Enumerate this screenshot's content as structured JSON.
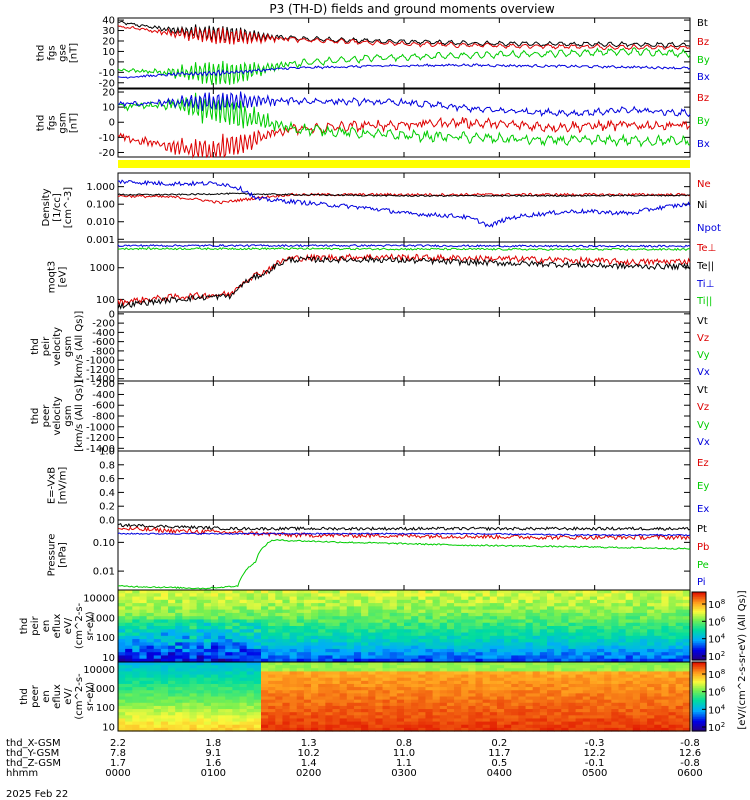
{
  "title": "P3 (TH-D) fields and ground moments overview",
  "date_label": "2025 Feb 22",
  "colors": {
    "black": "#000000",
    "red": "#dd0000",
    "green": "#00cc00",
    "blue": "#0000dd",
    "yellow": "#ffff00"
  },
  "chart_data": [
    {
      "type": "line",
      "id": "fgs_gse",
      "ylabel": [
        "thd",
        "fgs",
        "gse",
        "[nT]"
      ],
      "ylim": [
        -25,
        42
      ],
      "log": false,
      "yticks": [
        40,
        30,
        20,
        10,
        0,
        -10,
        -20
      ],
      "series": [
        {
          "name": "Bt",
          "color": "black",
          "shape": [
            [
              0,
              38
            ],
            [
              0.1,
              30
            ],
            [
              0.2,
              26
            ],
            [
              0.33,
              22
            ],
            [
              0.45,
              20
            ],
            [
              0.6,
              18
            ],
            [
              0.75,
              17
            ],
            [
              0.9,
              17
            ],
            [
              1,
              16
            ]
          ],
          "noise": 2,
          "oscAmp": 8
        },
        {
          "name": "Bz",
          "color": "red",
          "shape": [
            [
              0,
              34
            ],
            [
              0.1,
              27
            ],
            [
              0.2,
              24
            ],
            [
              0.33,
              21
            ],
            [
              0.45,
              18
            ],
            [
              0.6,
              16
            ],
            [
              0.75,
              15
            ],
            [
              0.9,
              14
            ],
            [
              1,
              14
            ]
          ],
          "noise": 2,
          "oscAmp": 8
        },
        {
          "name": "By",
          "color": "green",
          "shape": [
            [
              0,
              -8
            ],
            [
              0.1,
              -10
            ],
            [
              0.2,
              -12
            ],
            [
              0.3,
              -2
            ],
            [
              0.45,
              4
            ],
            [
              0.6,
              6
            ],
            [
              0.75,
              8
            ],
            [
              0.9,
              10
            ],
            [
              1,
              8
            ]
          ],
          "noise": 3,
          "oscAmp": 12
        },
        {
          "name": "Bx",
          "color": "blue",
          "shape": [
            [
              0,
              -15
            ],
            [
              0.1,
              -12
            ],
            [
              0.2,
              -10
            ],
            [
              0.3,
              -6
            ],
            [
              0.45,
              -4
            ],
            [
              0.6,
              -3
            ],
            [
              0.75,
              -4
            ],
            [
              0.9,
              -5
            ],
            [
              1,
              -6
            ]
          ],
          "noise": 2,
          "oscAmp": 2
        }
      ]
    },
    {
      "type": "line",
      "id": "fgs_gsm",
      "ylabel": [
        "thd",
        "fgs",
        "gsm",
        "[nT]"
      ],
      "ylim": [
        -23,
        22
      ],
      "log": false,
      "yticks": [
        20,
        10,
        0,
        -10,
        -20
      ],
      "series": [
        {
          "name": "Bz",
          "color": "red",
          "shape": [
            [
              0,
              -10
            ],
            [
              0.08,
              -15
            ],
            [
              0.16,
              -20
            ],
            [
              0.2,
              -15
            ],
            [
              0.3,
              -5
            ],
            [
              0.45,
              -2
            ],
            [
              0.6,
              0
            ],
            [
              0.75,
              -3
            ],
            [
              0.9,
              -2
            ],
            [
              1,
              -2
            ]
          ],
          "noise": 5,
          "oscAmp": 8
        },
        {
          "name": "By",
          "color": "green",
          "shape": [
            [
              0,
              10
            ],
            [
              0.1,
              12
            ],
            [
              0.18,
              8
            ],
            [
              0.3,
              -4
            ],
            [
              0.45,
              -8
            ],
            [
              0.6,
              -10
            ],
            [
              0.75,
              -12
            ],
            [
              0.9,
              -12
            ],
            [
              1,
              -13
            ]
          ],
          "noise": 4,
          "oscAmp": 10
        },
        {
          "name": "Bx",
          "color": "blue",
          "shape": [
            [
              0,
              12
            ],
            [
              0.1,
              13
            ],
            [
              0.2,
              14
            ],
            [
              0.35,
              14
            ],
            [
              0.5,
              13
            ],
            [
              0.65,
              8
            ],
            [
              0.8,
              6
            ],
            [
              0.9,
              8
            ],
            [
              1,
              6
            ]
          ],
          "noise": 3,
          "oscAmp": 6
        }
      ]
    },
    {
      "type": "line",
      "id": "density",
      "ylabel": [
        "Density",
        "[1/cc]",
        "[cm^-3]"
      ],
      "ylim": [
        0.0007,
        6
      ],
      "log": true,
      "yticks": [
        1.0,
        0.1,
        0.01,
        0.001
      ],
      "ytick_labels": [
        "1.000",
        "0.100",
        "0.010",
        "0.001"
      ],
      "series": [
        {
          "name": "Ne",
          "color": "red",
          "shape": [
            [
              0,
              0.3
            ],
            [
              0.1,
              0.25
            ],
            [
              0.18,
              0.12
            ],
            [
              0.23,
              0.2
            ],
            [
              0.3,
              0.35
            ],
            [
              0.5,
              0.35
            ],
            [
              0.7,
              0.35
            ],
            [
              1,
              0.35
            ]
          ],
          "noise": 0.15,
          "oscAmp": 0
        },
        {
          "name": "Ni",
          "color": "black",
          "shape": [
            [
              0,
              0.35
            ],
            [
              0.1,
              0.35
            ],
            [
              0.2,
              0.4
            ],
            [
              0.3,
              0.35
            ],
            [
              0.5,
              0.3
            ],
            [
              0.7,
              0.3
            ],
            [
              1,
              0.32
            ]
          ],
          "noise": 0.08,
          "oscAmp": 0
        },
        {
          "name": "Npot",
          "color": "blue",
          "shape": [
            [
              0,
              2.0
            ],
            [
              0.08,
              1.5
            ],
            [
              0.18,
              1.5
            ],
            [
              0.24,
              0.2
            ],
            [
              0.35,
              0.1
            ],
            [
              0.5,
              0.03
            ],
            [
              0.6,
              0.02
            ],
            [
              0.65,
              0.005
            ],
            [
              0.7,
              0.02
            ],
            [
              0.8,
              0.04
            ],
            [
              0.9,
              0.03
            ],
            [
              1,
              0.1
            ]
          ],
          "noise": 0.25,
          "oscAmp": 0
        }
      ],
      "legend": [
        "Ne",
        "Ni",
        "Npot"
      ]
    },
    {
      "type": "line",
      "id": "temperature",
      "ylabel": [
        "moqt3",
        "[eV]"
      ],
      "ylim": [
        40,
        6500
      ],
      "log": true,
      "yticks": [
        1000,
        100
      ],
      "series": [
        {
          "name": "Te⊥",
          "color": "red",
          "shape": [
            [
              0,
              80
            ],
            [
              0.1,
              120
            ],
            [
              0.2,
              150
            ],
            [
              0.26,
              800
            ],
            [
              0.3,
              2000
            ],
            [
              0.45,
              2200
            ],
            [
              0.6,
              2000
            ],
            [
              0.75,
              1800
            ],
            [
              0.9,
              1500
            ],
            [
              1,
              1600
            ]
          ],
          "noise": 0.2,
          "oscAmp": 0
        },
        {
          "name": "Te||",
          "color": "black",
          "shape": [
            [
              0,
              60
            ],
            [
              0.1,
              100
            ],
            [
              0.2,
              130
            ],
            [
              0.26,
              700
            ],
            [
              0.3,
              1800
            ],
            [
              0.45,
              1800
            ],
            [
              0.6,
              1500
            ],
            [
              0.75,
              1300
            ],
            [
              0.9,
              1100
            ],
            [
              1,
              1100
            ]
          ],
          "noise": 0.18,
          "oscAmp": 0
        },
        {
          "name": "Ti⊥",
          "color": "blue",
          "shape": [
            [
              0,
              5000
            ],
            [
              0.3,
              5000
            ],
            [
              0.5,
              5000
            ],
            [
              0.75,
              4800
            ],
            [
              1,
              4800
            ]
          ],
          "noise": 0.06,
          "oscAmp": 0
        },
        {
          "name": "Ti||",
          "color": "green",
          "shape": [
            [
              0,
              4000
            ],
            [
              0.3,
              4000
            ],
            [
              0.5,
              3900
            ],
            [
              0.75,
              3800
            ],
            [
              1,
              3800
            ]
          ],
          "noise": 0.06,
          "oscAmp": 0
        }
      ]
    },
    {
      "type": "line",
      "id": "peir_velocity",
      "ylabel": [
        "thd",
        "peir",
        "velocity",
        "gsm",
        "[km/s (All Qs)]"
      ],
      "ylim": [
        -1450,
        40
      ],
      "log": false,
      "yticks": [
        0,
        -200,
        -400,
        -600,
        -800,
        -1000,
        -1200,
        -1400
      ],
      "series": [],
      "legend_series": [
        {
          "name": "Vt",
          "color": "black"
        },
        {
          "name": "Vz",
          "color": "red"
        },
        {
          "name": "Vy",
          "color": "green"
        },
        {
          "name": "Vx",
          "color": "blue"
        }
      ]
    },
    {
      "type": "line",
      "id": "peer_velocity",
      "ylabel": [
        "thd",
        "peer",
        "velocity",
        "gsm",
        "[km/s (All Qs)]"
      ],
      "ylim": [
        -1450,
        -150
      ],
      "log": false,
      "yticks": [
        -200,
        -400,
        -600,
        -800,
        -1000,
        -1200,
        -1400
      ],
      "series": [],
      "legend_series": [
        {
          "name": "Vt",
          "color": "black"
        },
        {
          "name": "Vz",
          "color": "red"
        },
        {
          "name": "Vy",
          "color": "green"
        },
        {
          "name": "Vx",
          "color": "blue"
        }
      ]
    },
    {
      "type": "line",
      "id": "efield",
      "ylabel": [
        "E=-VxB",
        "[mV/m]"
      ],
      "ylim": [
        0,
        1.0
      ],
      "log": false,
      "yticks": [
        1.0,
        0.8,
        0.6,
        0.4,
        0.2,
        0.0
      ],
      "ytick_labels": [
        "1.0",
        "0.8",
        "0.6",
        "0.4",
        "0.2",
        "0.0"
      ],
      "series": [],
      "legend_series": [
        {
          "name": "Ez",
          "color": "red"
        },
        {
          "name": "Ey",
          "color": "green"
        },
        {
          "name": "Ex",
          "color": "blue"
        }
      ]
    },
    {
      "type": "line",
      "id": "pressure",
      "ylabel": [
        "Pressure",
        "[nPa]"
      ],
      "ylim": [
        0.0022,
        0.6
      ],
      "log": true,
      "yticks": [
        0.1,
        0.01
      ],
      "ytick_labels": [
        "0.10",
        "0.01"
      ],
      "series": [
        {
          "name": "Pt",
          "color": "black",
          "shape": [
            [
              0,
              0.4
            ],
            [
              0.1,
              0.35
            ],
            [
              0.2,
              0.3
            ],
            [
              0.3,
              0.3
            ],
            [
              0.5,
              0.3
            ],
            [
              0.75,
              0.3
            ],
            [
              1,
              0.3
            ]
          ],
          "noise": 0.1,
          "oscAmp": 0
        },
        {
          "name": "Pb",
          "color": "red",
          "shape": [
            [
              0,
              0.3
            ],
            [
              0.1,
              0.25
            ],
            [
              0.2,
              0.22
            ],
            [
              0.3,
              0.18
            ],
            [
              0.5,
              0.17
            ],
            [
              0.75,
              0.15
            ],
            [
              1,
              0.15
            ]
          ],
          "noise": 0.15,
          "oscAmp": 0
        },
        {
          "name": "Pe",
          "color": "green",
          "shape": [
            [
              0,
              0.003
            ],
            [
              0.15,
              0.0025
            ],
            [
              0.21,
              0.003
            ],
            [
              0.24,
              0.02
            ],
            [
              0.27,
              0.12
            ],
            [
              0.4,
              0.1
            ],
            [
              0.6,
              0.08
            ],
            [
              0.8,
              0.07
            ],
            [
              1,
              0.06
            ]
          ],
          "noise": 0.05,
          "oscAmp": 0
        },
        {
          "name": "Pi",
          "color": "blue",
          "shape": [
            [
              0,
              0.2
            ],
            [
              0.1,
              0.2
            ],
            [
              0.2,
              0.2
            ],
            [
              0.4,
              0.2
            ],
            [
              0.6,
              0.2
            ],
            [
              0.8,
              0.18
            ],
            [
              1,
              0.18
            ]
          ],
          "noise": 0.05,
          "oscAmp": 0
        }
      ]
    },
    {
      "type": "heatmap",
      "id": "peir_spectrogram",
      "ylabel": [
        "thd",
        "peir",
        "en",
        "eflux",
        "eV/",
        "(cm^2-s-",
        "sr-eV)"
      ],
      "ylim": [
        6,
        25000
      ],
      "log": true,
      "yticks": [
        10000,
        1000,
        100,
        10
      ]
    },
    {
      "type": "heatmap",
      "id": "peer_spectrogram",
      "ylabel": [
        "thd",
        "peer",
        "en",
        "eflux",
        "eV/",
        "(cm^2-s-",
        "sr-eV)"
      ],
      "ylim": [
        6,
        25000
      ],
      "log": true,
      "yticks": [
        10000,
        1000,
        100,
        10
      ]
    }
  ],
  "colorbar": {
    "label": "[eV/(cm^2-s-sr-eV) (All Qs)]",
    "ticks_top": [
      "10^8",
      "10^6",
      "10^4",
      "10^2"
    ],
    "ticks_bottom": [
      "10^8",
      "10^6",
      "10^4",
      "10^2"
    ]
  },
  "time_axis": {
    "rows": [
      {
        "label": "thd_X-GSM",
        "values": [
          "2.2",
          "1.8",
          "1.3",
          "0.8",
          "0.2",
          "-0.3",
          "-0.8"
        ]
      },
      {
        "label": "thd_Y-GSM",
        "values": [
          "7.8",
          "9.1",
          "10.2",
          "11.0",
          "11.7",
          "12.2",
          "12.6"
        ]
      },
      {
        "label": "thd_Z-GSM",
        "values": [
          "1.7",
          "1.6",
          "1.4",
          "1.1",
          "0.5",
          "-0.1",
          "-0.8"
        ]
      },
      {
        "label": "hhmm",
        "values": [
          "0000",
          "0100",
          "0200",
          "0300",
          "0400",
          "0500",
          "0600"
        ]
      }
    ]
  }
}
